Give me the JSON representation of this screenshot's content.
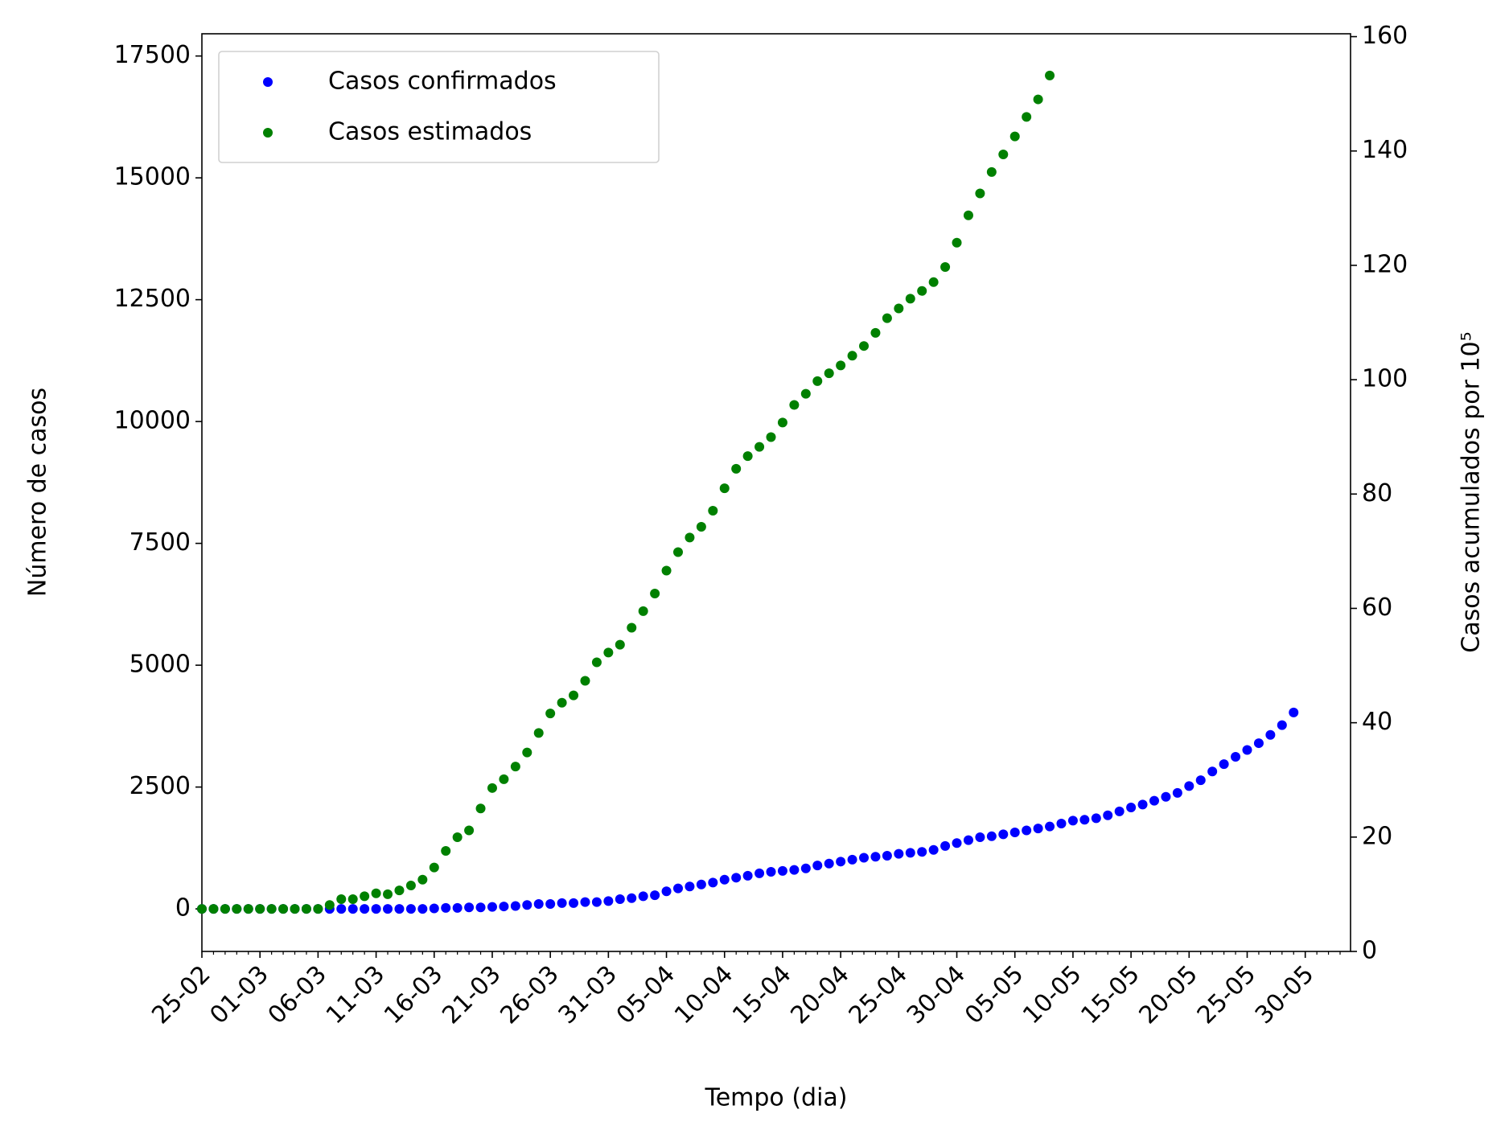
{
  "chart_data": {
    "type": "scatter",
    "xlabel": "Tempo (dia)",
    "ylabel": "Número de casos",
    "y2label": "Casos acumulados por 10⁵",
    "categories": [
      "25-02",
      null,
      null,
      null,
      null,
      "01-03",
      null,
      null,
      null,
      null,
      "06-03",
      null,
      null,
      null,
      null,
      "11-03",
      null,
      null,
      null,
      null,
      "16-03",
      null,
      null,
      null,
      null,
      "21-03",
      null,
      null,
      null,
      null,
      "26-03",
      null,
      null,
      null,
      null,
      "31-03",
      null,
      null,
      null,
      null,
      "05-04",
      null,
      null,
      null,
      null,
      "10-04",
      null,
      null,
      null,
      null,
      "15-04",
      null,
      null,
      null,
      null,
      "20-04",
      null,
      null,
      null,
      null,
      "25-04",
      null,
      null,
      null,
      null,
      "30-04",
      null,
      null,
      null,
      null,
      "05-05",
      null,
      null,
      null,
      null,
      "10-05",
      null,
      null,
      null,
      null,
      "15-05",
      null,
      null,
      null,
      null,
      "20-05",
      null,
      null,
      null,
      null,
      "25-05",
      null,
      null,
      null,
      null,
      "30-05",
      null,
      null,
      null
    ],
    "series": [
      {
        "name": "Casos confirmados",
        "color": "#0000ff",
        "values": [
          0,
          0,
          0,
          0,
          0,
          0,
          0,
          0,
          0,
          0,
          0,
          0,
          0,
          0,
          0,
          0,
          0,
          0,
          0,
          0,
          10,
          20,
          20,
          30,
          30,
          40,
          50,
          60,
          80,
          100,
          100,
          120,
          120,
          140,
          140,
          160,
          200,
          220,
          260,
          280,
          360,
          420,
          460,
          500,
          540,
          600,
          640,
          680,
          730,
          760,
          780,
          800,
          830,
          890,
          930,
          970,
          1010,
          1050,
          1070,
          1090,
          1130,
          1150,
          1170,
          1210,
          1290,
          1350,
          1410,
          1470,
          1490,
          1530,
          1570,
          1610,
          1650,
          1690,
          1750,
          1810,
          1830,
          1860,
          1920,
          2000,
          2080,
          2140,
          2220,
          2300,
          2380,
          2520,
          2640,
          2820,
          2970,
          3120,
          3260,
          3400,
          3570,
          3770,
          4030,
          null,
          null,
          null,
          null
        ]
      },
      {
        "name": "Casos estimados",
        "color": "#008000",
        "values": [
          0,
          0,
          0,
          0,
          0,
          0,
          0,
          0,
          0,
          0,
          0,
          80,
          200,
          200,
          260,
          320,
          300,
          380,
          480,
          600,
          850,
          1190,
          1470,
          1610,
          2060,
          2480,
          2660,
          2920,
          3210,
          3610,
          4010,
          4230,
          4380,
          4680,
          5060,
          5260,
          5420,
          5770,
          6110,
          6470,
          6940,
          7320,
          7620,
          7840,
          8170,
          8630,
          9030,
          9290,
          9480,
          9680,
          9980,
          10340,
          10570,
          10830,
          10990,
          11150,
          11350,
          11550,
          11820,
          12120,
          12320,
          12520,
          12680,
          12860,
          13170,
          13670,
          14230,
          14680,
          15120,
          15480,
          15850,
          16250,
          16610,
          17100,
          null,
          null,
          null,
          null,
          null,
          null,
          null,
          null,
          null,
          null,
          null,
          null,
          null,
          null,
          null,
          null,
          null,
          null,
          null,
          null,
          null,
          null,
          null,
          null,
          null
        ]
      }
    ],
    "ylim": [
      -873,
      17956
    ],
    "yticks": [
      0,
      2500,
      5000,
      7500,
      10000,
      12500,
      15000,
      17500
    ],
    "y2lim": [
      0,
      160.5
    ],
    "y2ticks": [
      0,
      20,
      40,
      60,
      80,
      100,
      120,
      140,
      160
    ],
    "legend": "upper left"
  }
}
